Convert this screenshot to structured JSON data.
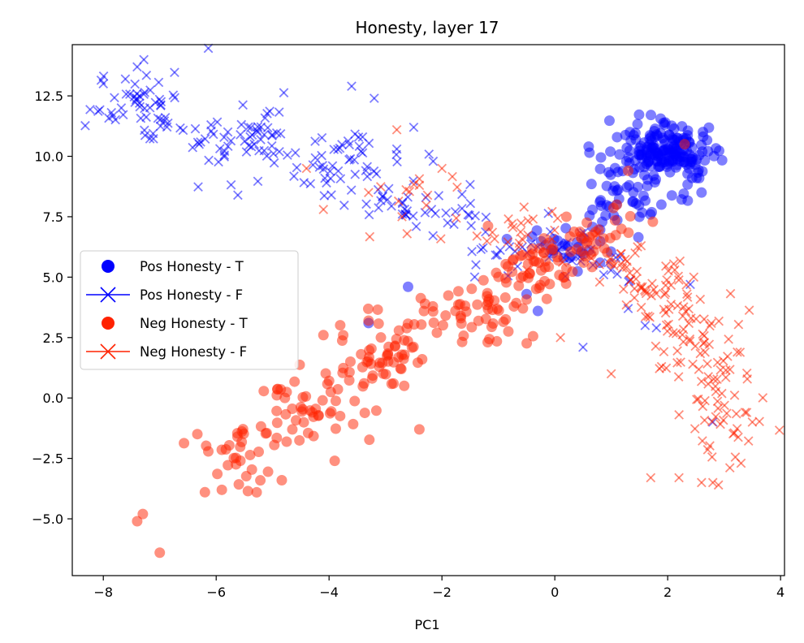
{
  "chart_data": {
    "type": "scatter",
    "title": "Honesty, layer 17",
    "xlabel": "PC1",
    "ylabel": "",
    "xlim": [
      -8.55,
      4.07
    ],
    "ylim": [
      -7.35,
      14.62
    ],
    "xticks": [
      -8,
      -6,
      -4,
      -2,
      0,
      2,
      4
    ],
    "yticks": [
      -5.0,
      -2.5,
      0.0,
      2.5,
      5.0,
      7.5,
      10.0,
      12.5
    ],
    "xtick_labels": [
      "−8",
      "−6",
      "−4",
      "−2",
      "0",
      "2",
      "4"
    ],
    "ytick_labels": [
      "−5.0",
      "−2.5",
      "0.0",
      "2.5",
      "5.0",
      "7.5",
      "10.0",
      "12.5"
    ],
    "grid": false,
    "legend_position": "center-left",
    "series": [
      {
        "name": "Pos Honesty - T",
        "color": "#0000ff",
        "marker": "circle",
        "clusters": [
          {
            "cx": 2.0,
            "cy": 10.2,
            "sx": 0.4,
            "sy": 0.55,
            "n": 180
          },
          {
            "cx": 1.3,
            "cy": 8.3,
            "sx": 0.45,
            "sy": 0.7,
            "n": 50
          },
          {
            "cx": 0.4,
            "cy": 6.3,
            "sx": 0.5,
            "sy": 0.6,
            "n": 30
          }
        ],
        "points": [
          [
            0.6,
            10.4
          ],
          [
            -2.6,
            4.6
          ],
          [
            -3.3,
            3.1
          ],
          [
            -0.5,
            4.3
          ],
          [
            -0.3,
            3.6
          ],
          [
            2.6,
            8.5
          ]
        ]
      },
      {
        "name": "Pos Honesty - F",
        "color": "#0000ff",
        "marker": "x",
        "clusters": [
          {
            "cx": -7.2,
            "cy": 12.1,
            "sx": 0.45,
            "sy": 0.7,
            "n": 55
          },
          {
            "cx": -5.5,
            "cy": 10.7,
            "sx": 0.6,
            "sy": 0.8,
            "n": 65
          },
          {
            "cx": -3.6,
            "cy": 9.4,
            "sx": 0.6,
            "sy": 0.8,
            "n": 55
          },
          {
            "cx": -2.2,
            "cy": 7.7,
            "sx": 0.6,
            "sy": 0.6,
            "n": 35
          },
          {
            "cx": -0.6,
            "cy": 6.2,
            "sx": 0.5,
            "sy": 0.5,
            "n": 25
          },
          {
            "cx": 0.9,
            "cy": 5.6,
            "sx": 0.4,
            "sy": 0.4,
            "n": 15
          }
        ],
        "points": [
          [
            -7.4,
            13.7
          ],
          [
            -8.0,
            13.0
          ],
          [
            -3.6,
            12.9
          ],
          [
            -3.2,
            12.4
          ],
          [
            -2.5,
            11.2
          ],
          [
            -2.8,
            10.3
          ],
          [
            0.5,
            2.1
          ],
          [
            1.8,
            2.9
          ],
          [
            1.3,
            3.7
          ],
          [
            2.4,
            4.7
          ],
          [
            1.6,
            3.0
          ],
          [
            2.8,
            -1.0
          ]
        ]
      },
      {
        "name": "Neg Honesty - T",
        "color": "#ff2200",
        "marker": "circle",
        "clusters": [
          {
            "cx": -5.6,
            "cy": -2.4,
            "sx": 0.45,
            "sy": 0.9,
            "n": 35
          },
          {
            "cx": -4.3,
            "cy": -0.3,
            "sx": 0.5,
            "sy": 0.8,
            "n": 50
          },
          {
            "cx": -3.0,
            "cy": 1.6,
            "sx": 0.5,
            "sy": 0.8,
            "n": 55
          },
          {
            "cx": -1.6,
            "cy": 3.4,
            "sx": 0.55,
            "sy": 0.8,
            "n": 50
          },
          {
            "cx": -0.3,
            "cy": 5.5,
            "sx": 0.45,
            "sy": 0.6,
            "n": 55
          },
          {
            "cx": 0.7,
            "cy": 6.8,
            "sx": 0.35,
            "sy": 0.6,
            "n": 30
          }
        ],
        "points": [
          [
            -7.4,
            -5.1
          ],
          [
            -7.3,
            -4.8
          ],
          [
            -7.0,
            -6.4
          ],
          [
            -6.2,
            -3.9
          ],
          [
            -5.9,
            -3.8
          ],
          [
            -3.9,
            -2.6
          ],
          [
            -2.4,
            -1.3
          ],
          [
            -4.1,
            2.6
          ],
          [
            -3.3,
            3.2
          ],
          [
            -2.3,
            3.9
          ],
          [
            1.3,
            9.4
          ],
          [
            2.3,
            10.5
          ],
          [
            1.1,
            8.0
          ]
        ]
      },
      {
        "name": "Neg Honesty - F",
        "color": "#ff2200",
        "marker": "x",
        "clusters": [
          {
            "cx": 1.6,
            "cy": 5.2,
            "sx": 0.45,
            "sy": 0.7,
            "n": 40
          },
          {
            "cx": 2.2,
            "cy": 3.4,
            "sx": 0.45,
            "sy": 0.8,
            "n": 45
          },
          {
            "cx": 2.8,
            "cy": 1.4,
            "sx": 0.4,
            "sy": 0.8,
            "n": 40
          },
          {
            "cx": 3.1,
            "cy": -1.0,
            "sx": 0.3,
            "sy": 0.9,
            "n": 30
          },
          {
            "cx": -0.5,
            "cy": 6.6,
            "sx": 0.6,
            "sy": 0.6,
            "n": 25
          },
          {
            "cx": -2.5,
            "cy": 8.0,
            "sx": 0.7,
            "sy": 0.6,
            "n": 15
          }
        ],
        "points": [
          [
            -2.8,
            11.1
          ],
          [
            -3.3,
            8.5
          ],
          [
            -4.4,
            9.5
          ],
          [
            -4.1,
            7.8
          ],
          [
            -2.0,
            9.5
          ],
          [
            -2.4,
            8.8
          ],
          [
            0.1,
            2.5
          ],
          [
            1.0,
            1.0
          ],
          [
            1.7,
            -3.3
          ],
          [
            2.2,
            -3.3
          ],
          [
            2.6,
            -3.5
          ],
          [
            2.9,
            -3.6
          ],
          [
            3.3,
            -2.7
          ],
          [
            3.4,
            -0.6
          ],
          [
            3.5,
            -1.0
          ],
          [
            2.8,
            -3.5
          ]
        ]
      }
    ]
  }
}
